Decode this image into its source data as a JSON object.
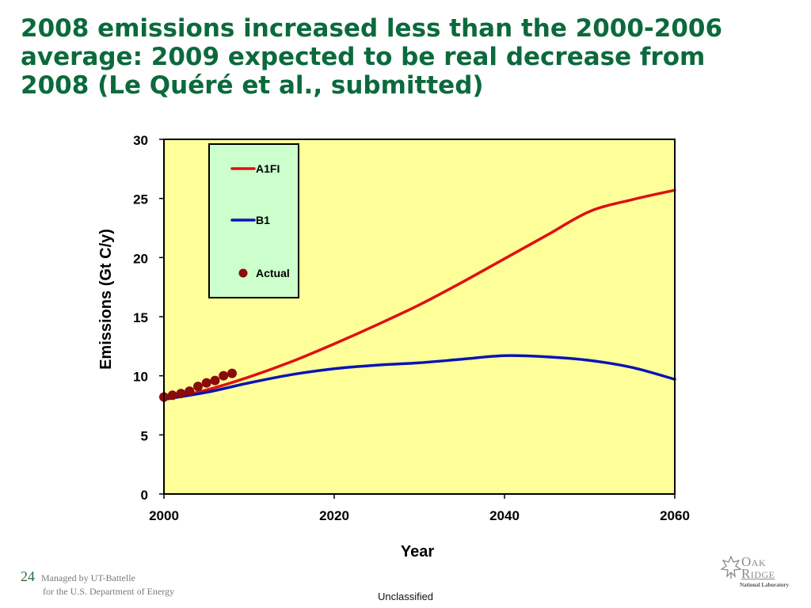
{
  "slide": {
    "title_lines": [
      "2008 emissions increased less than the 2000-2006",
      "average: 2009 expected to be real decrease from",
      "2008 (Le Quéré et al., submitted)"
    ],
    "page_number": "24",
    "managed_by_lines": [
      "Managed by UT-Battelle",
      "for the U.S. Department of Energy"
    ],
    "classification": "Unclassified",
    "logo": {
      "line1": "Oak",
      "line2": "Ridge",
      "line3": "National Laboratory"
    }
  },
  "chart_data": {
    "type": "line",
    "title": "",
    "xlabel": "Year",
    "ylabel": "Emissions (Gt C/y)",
    "xlim": [
      2000,
      2060
    ],
    "ylim": [
      0,
      30
    ],
    "x_ticks": [
      2000,
      2020,
      2040,
      2060
    ],
    "y_ticks": [
      0,
      5,
      10,
      15,
      20,
      25,
      30
    ],
    "grid": false,
    "plot_background": "#ffff99",
    "legend_background": "#ccffcc",
    "legend_position": "top-left",
    "series": [
      {
        "name": "A1FI",
        "kind": "line",
        "color": "#dd1111",
        "x": [
          2000,
          2005,
          2010,
          2015,
          2020,
          2025,
          2030,
          2035,
          2040,
          2045,
          2050,
          2055,
          2060
        ],
        "y": [
          8.0,
          8.8,
          9.9,
          11.2,
          12.7,
          14.3,
          16.0,
          17.9,
          19.9,
          21.9,
          23.9,
          24.9,
          25.7
        ]
      },
      {
        "name": "B1",
        "kind": "line",
        "color": "#0a14b4",
        "x": [
          2000,
          2005,
          2010,
          2015,
          2020,
          2025,
          2030,
          2035,
          2040,
          2045,
          2050,
          2055,
          2060
        ],
        "y": [
          8.0,
          8.6,
          9.4,
          10.1,
          10.6,
          10.9,
          11.1,
          11.4,
          11.7,
          11.6,
          11.3,
          10.7,
          9.7
        ]
      },
      {
        "name": "Actual",
        "kind": "scatter",
        "color": "#8b0a0a",
        "x": [
          2000,
          2001,
          2002,
          2003,
          2004,
          2005,
          2006,
          2007,
          2008
        ],
        "y": [
          8.2,
          8.35,
          8.5,
          8.7,
          9.1,
          9.4,
          9.6,
          10.0,
          10.2
        ]
      }
    ]
  }
}
